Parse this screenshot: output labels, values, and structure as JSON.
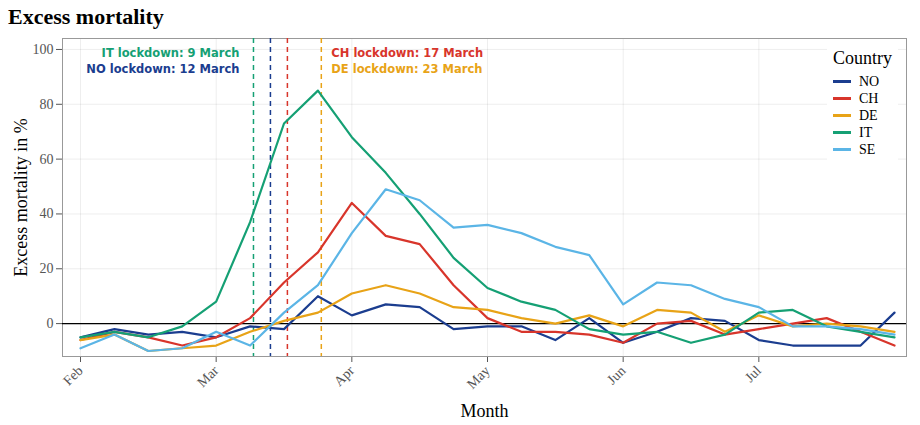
{
  "chart_data": {
    "type": "line",
    "title": "Excess mortality",
    "x_label": "Month",
    "y_label": "Excess mortality in %",
    "categories": [
      "Feb",
      null,
      null,
      null,
      "Mar",
      null,
      null,
      null,
      "Apr",
      null,
      null,
      null,
      "May",
      null,
      null,
      null,
      "Jun",
      null,
      null,
      null,
      "Jul",
      null,
      null,
      null,
      null
    ],
    "series": [
      {
        "name": "NO",
        "color": "#1b3d8f",
        "values": [
          -5,
          -2,
          -4,
          -3,
          -5,
          -1,
          -2,
          10,
          3,
          7,
          6,
          -2,
          -1,
          -1,
          -6,
          2,
          -7,
          -3,
          2,
          1,
          -6,
          -8,
          -8,
          -8,
          4
        ]
      },
      {
        "name": "CH",
        "color": "#d8352b",
        "values": [
          -6,
          -3,
          -5,
          -8,
          -5,
          2,
          15,
          26,
          44,
          32,
          29,
          14,
          2,
          -3,
          -3,
          -4,
          -7,
          0,
          1,
          -4,
          -2,
          0,
          2,
          -3,
          -8
        ]
      },
      {
        "name": "DE",
        "color": "#e8a317",
        "values": [
          -6,
          -4,
          -10,
          -9,
          -8,
          -3,
          1,
          4,
          11,
          14,
          11,
          6,
          5,
          2,
          0,
          3,
          -1,
          5,
          4,
          -3,
          3,
          -1,
          0,
          -1,
          -3
        ]
      },
      {
        "name": "IT",
        "color": "#15a074",
        "values": [
          -5,
          -3,
          -5,
          -1,
          8,
          37,
          73,
          85,
          68,
          55,
          40,
          24,
          13,
          8,
          5,
          -2,
          -4,
          -3,
          -7,
          -4,
          4,
          5,
          -1,
          -3,
          -5
        ]
      },
      {
        "name": "SE",
        "color": "#5bb5e6",
        "values": [
          -9,
          -4,
          -10,
          -9,
          -3,
          -8,
          4,
          14,
          33,
          49,
          45,
          35,
          36,
          33,
          28,
          25,
          7,
          15,
          14,
          9,
          6,
          -1,
          -1,
          -2,
          -4
        ]
      }
    ],
    "ylim": [
      -12,
      104
    ],
    "yticks": [
      0,
      20,
      40,
      60,
      80,
      100
    ],
    "grid": true,
    "legend": "top-right",
    "legend_title": "Country",
    "hline": 0,
    "annotations": [
      {
        "text": "IT lockdown: 9 March",
        "x": 5.1,
        "color": "#15a074"
      },
      {
        "text": "NO lockdown: 12 March",
        "x": 5.6,
        "color": "#1b3d8f"
      },
      {
        "text": "CH lockdown: 17 March",
        "x": 6.1,
        "color": "#d8352b"
      },
      {
        "text": "DE lockdown: 23 March",
        "x": 7.1,
        "color": "#e8a317"
      }
    ]
  }
}
